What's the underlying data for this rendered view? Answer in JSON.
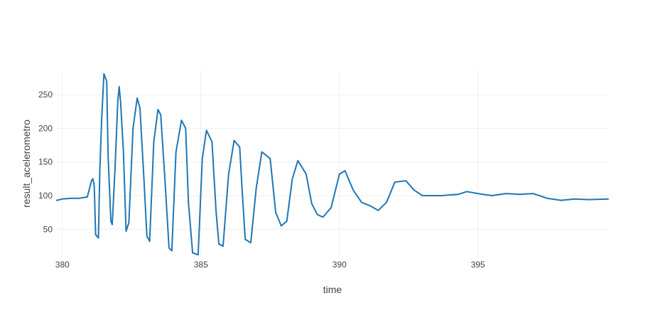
{
  "chart_data": {
    "type": "line",
    "title": "",
    "xlabel": "time",
    "ylabel": "result_acelerometro",
    "xlim": [
      379.8,
      399.7
    ],
    "ylim": [
      8,
      285
    ],
    "x_ticks": [
      380,
      385,
      390,
      395
    ],
    "y_ticks": [
      50,
      100,
      150,
      200,
      250
    ],
    "grid": true,
    "line_color": "#1f77b4",
    "series": [
      {
        "x": [
          379.8,
          380.0,
          380.3,
          380.6,
          380.9,
          381.05,
          381.1,
          381.15,
          381.2,
          381.3,
          381.35,
          381.42,
          381.5,
          381.6,
          381.65,
          381.75,
          381.8,
          381.9,
          382.0,
          382.05,
          382.1,
          382.2,
          382.3,
          382.4,
          382.55,
          382.7,
          382.8,
          382.95,
          383.05,
          383.15,
          383.3,
          383.45,
          383.55,
          383.7,
          383.85,
          383.95,
          384.1,
          384.3,
          384.45,
          384.55,
          384.7,
          384.9,
          385.05,
          385.2,
          385.4,
          385.55,
          385.65,
          385.8,
          386.0,
          386.2,
          386.4,
          386.5,
          386.6,
          386.8,
          387.0,
          387.2,
          387.5,
          387.7,
          387.9,
          388.1,
          388.3,
          388.5,
          388.8,
          389.0,
          389.2,
          389.4,
          389.7,
          390.0,
          390.2,
          390.5,
          390.8,
          391.1,
          391.4,
          391.7,
          392.0,
          392.4,
          392.7,
          393.0,
          393.3,
          393.7,
          394.0,
          394.3,
          394.6,
          395.0,
          395.5,
          396.0,
          396.5,
          397.0,
          397.5,
          398.0,
          398.5,
          399.0,
          399.7
        ],
        "y": [
          93,
          95,
          96,
          96,
          98,
          122,
          125,
          115,
          42,
          37,
          135,
          215,
          281,
          270,
          160,
          62,
          57,
          140,
          240,
          262,
          240,
          168,
          47,
          60,
          200,
          245,
          230,
          120,
          40,
          32,
          180,
          228,
          220,
          125,
          22,
          18,
          165,
          212,
          200,
          90,
          15,
          12,
          155,
          197,
          180,
          75,
          28,
          25,
          132,
          182,
          172,
          100,
          35,
          30,
          112,
          165,
          155,
          75,
          55,
          62,
          125,
          152,
          132,
          88,
          72,
          68,
          82,
          132,
          137,
          108,
          90,
          85,
          78,
          90,
          120,
          122,
          108,
          100,
          100,
          100,
          101,
          102,
          106,
          103,
          100,
          103,
          102,
          103,
          96,
          93,
          95,
          94,
          95
        ]
      }
    ]
  }
}
